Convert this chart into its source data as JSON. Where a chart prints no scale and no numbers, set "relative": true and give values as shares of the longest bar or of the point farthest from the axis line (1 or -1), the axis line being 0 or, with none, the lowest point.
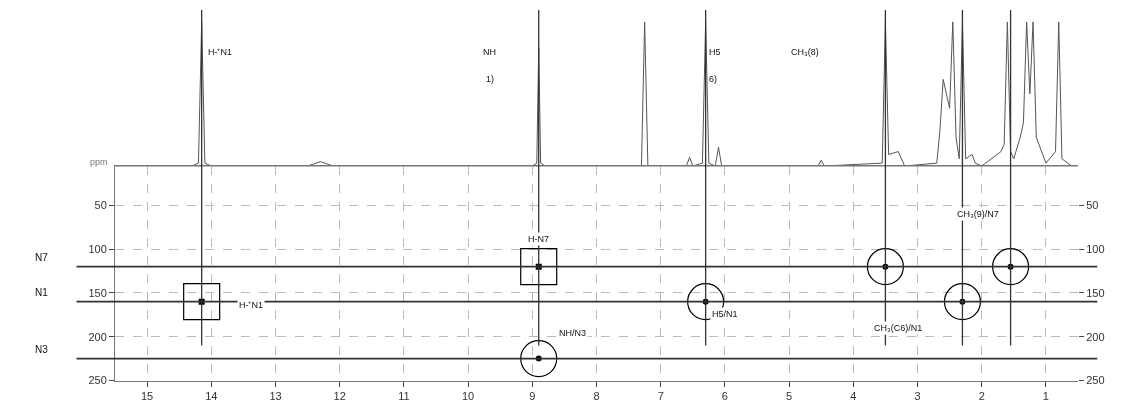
{
  "chart_data": [
    {
      "type": "line",
      "relative": true,
      "tick_labels": false,
      "xlim": [
        15.5,
        0.5
      ],
      "grid": false,
      "marker": "none",
      "line_style": "solid",
      "annotations": [
        "ppm",
        "H-⁺N1",
        "NH",
        "1)",
        "H5",
        "6)",
        "CH₃(8)"
      ],
      "series": [
        {
          "color": "#555555",
          "x": [
            15.3,
            14.3,
            14.2,
            14.15,
            14.1,
            14.0,
            12.5,
            12.3,
            12.1,
            9.0,
            8.93,
            8.9,
            8.87,
            8.8,
            7.3,
            7.25,
            7.2,
            6.6,
            6.55,
            6.5,
            6.35,
            6.3,
            6.25,
            6.15,
            6.1,
            6.05,
            4.55,
            4.5,
            4.45,
            3.55,
            3.5,
            3.45,
            3.3,
            3.2,
            2.7,
            2.65,
            2.6,
            2.55,
            2.5,
            2.45,
            2.4,
            2.35,
            2.3,
            2.25,
            2.15,
            2.1,
            2.0,
            1.7,
            1.65,
            1.6,
            1.55,
            1.5,
            1.4,
            1.35,
            1.3,
            1.25,
            1.2,
            1.15,
            1.0,
            0.85,
            0.8,
            0.75,
            0.6
          ],
          "values": [
            0,
            0,
            0.02,
            1,
            0.02,
            0,
            0,
            0.03,
            0,
            0,
            0.02,
            0.82,
            0.02,
            0,
            0,
            1,
            0,
            0,
            0.06,
            0,
            0.02,
            1,
            0.02,
            0,
            0.13,
            0,
            0,
            0.04,
            0,
            0.02,
            1,
            0.08,
            0.1,
            0,
            0.02,
            0.25,
            0.6,
            0.5,
            0.4,
            1,
            0.2,
            0.05,
            1,
            0.05,
            0.08,
            0.02,
            0,
            0.1,
            0.15,
            1,
            0.1,
            0.05,
            0.2,
            0.3,
            1,
            0.5,
            1,
            0.2,
            0.02,
            0.1,
            1,
            0.05,
            0
          ]
        }
      ]
    },
    {
      "type": "scatter",
      "xlim": [
        15.5,
        0.5
      ],
      "xticks": [
        15,
        14,
        13,
        12,
        11,
        10,
        9,
        8,
        7,
        6,
        5,
        4,
        3,
        2,
        1
      ],
      "ylim": [
        250,
        5
      ],
      "yticks": [
        50,
        100,
        150,
        200,
        250
      ],
      "y2lim": [
        250,
        5
      ],
      "y2ticks": [
        50,
        100,
        150,
        200,
        250
      ],
      "grid": true,
      "series": [
        {
          "color": "#000000",
          "marker": "square",
          "x": [
            14.15,
            8.9
          ],
          "values": [
            160,
            120
          ]
        },
        {
          "color": "#000000",
          "marker": "circle",
          "x": [
            8.9,
            6.3,
            3.5,
            2.3,
            1.55
          ],
          "values": [
            225,
            160,
            120,
            160,
            120
          ]
        }
      ],
      "ref_lines": [
        {
          "axis": "y",
          "value": 120,
          "label": "N7",
          "color": "#333333"
        },
        {
          "axis": "y",
          "value": 160,
          "label": "N1",
          "color": "#333333"
        },
        {
          "axis": "y",
          "value": 225,
          "label": "N3",
          "color": "#333333"
        },
        {
          "axis": "x",
          "value": 14.15,
          "color": "#333333"
        },
        {
          "axis": "x",
          "value": 8.9,
          "color": "#333333"
        },
        {
          "axis": "x",
          "value": 6.3,
          "color": "#333333"
        },
        {
          "axis": "x",
          "value": 3.5,
          "color": "#333333"
        },
        {
          "axis": "x",
          "value": 2.3,
          "color": "#333333"
        },
        {
          "axis": "x",
          "value": 1.55,
          "color": "#333333"
        }
      ],
      "annotations": [
        "H-⁺N1",
        "H-N7",
        "NH/N3",
        "H5/N1",
        "CH₃(C6)/N1",
        "CH₃(9)/N7"
      ]
    }
  ]
}
